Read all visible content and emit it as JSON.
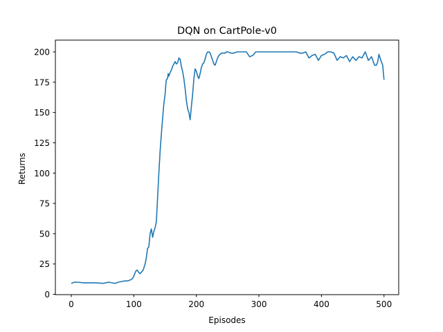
{
  "chart_data": {
    "type": "line",
    "title": "DQN on CartPole-v0",
    "xlabel": "Episodes",
    "ylabel": "Returns",
    "xlim": [
      -25,
      525
    ],
    "ylim": [
      -2,
      208
    ],
    "xticks": [
      0,
      100,
      200,
      300,
      400,
      500
    ],
    "yticks": [
      0,
      25,
      50,
      75,
      100,
      125,
      150,
      175,
      200
    ],
    "grid": false,
    "legend": null,
    "line_color": "#1f77b4",
    "series": [
      {
        "name": "Returns",
        "x": [
          0,
          5,
          10,
          20,
          30,
          40,
          50,
          55,
          60,
          65,
          70,
          75,
          80,
          85,
          90,
          95,
          98,
          100,
          103,
          105,
          108,
          110,
          115,
          118,
          120,
          122,
          124,
          126,
          128,
          130,
          132,
          134,
          136,
          138,
          140,
          142,
          143,
          144,
          146,
          148,
          150,
          151,
          152,
          154,
          155,
          156,
          158,
          160,
          162,
          164,
          166,
          168,
          170,
          172,
          174,
          176,
          178,
          180,
          182,
          184,
          186,
          188,
          190,
          192,
          194,
          196,
          198,
          200,
          202,
          204,
          206,
          208,
          210,
          212,
          214,
          216,
          218,
          220,
          222,
          224,
          226,
          228,
          230,
          232,
          234,
          236,
          238,
          240,
          242,
          244,
          246,
          248,
          250,
          255,
          260,
          265,
          270,
          275,
          280,
          285,
          290,
          295,
          300,
          305,
          310,
          315,
          320,
          325,
          330,
          335,
          340,
          345,
          350,
          355,
          360,
          365,
          370,
          375,
          380,
          385,
          390,
          392,
          395,
          400,
          405,
          410,
          415,
          420,
          425,
          430,
          435,
          440,
          445,
          450,
          455,
          460,
          465,
          470,
          475,
          480,
          485,
          488,
          490,
          492,
          495,
          498,
          500
        ],
        "values": [
          9,
          10,
          10,
          9.5,
          9.5,
          9.5,
          9,
          9.5,
          10,
          9.5,
          9,
          10,
          10.5,
          11,
          11,
          12,
          13,
          15,
          19,
          20,
          18,
          17,
          20,
          25,
          30,
          38,
          39,
          50,
          54,
          47,
          52,
          55,
          60,
          80,
          100,
          118,
          125,
          132,
          145,
          157,
          165,
          172,
          177,
          178,
          182,
          180,
          183,
          185,
          188,
          190,
          192,
          190,
          191,
          195,
          194,
          188,
          184,
          178,
          170,
          160,
          153,
          150,
          144,
          155,
          165,
          178,
          186,
          184,
          180,
          178,
          182,
          187,
          190,
          191,
          194,
          198,
          200,
          200,
          199,
          196,
          193,
          190,
          189,
          192,
          195,
          197,
          198,
          199,
          199,
          199,
          199,
          200,
          200,
          199,
          199,
          200,
          200,
          200,
          200,
          196,
          197,
          200,
          200,
          200,
          200,
          200,
          200,
          200,
          200,
          200,
          200,
          200,
          200,
          200,
          200,
          199,
          199,
          200,
          195,
          197,
          198,
          196,
          193,
          197,
          198,
          200,
          200,
          199,
          193,
          196,
          195,
          197,
          192,
          196,
          193,
          196,
          195,
          200,
          193,
          196,
          189,
          189,
          192,
          198,
          193,
          189,
          177
        ]
      }
    ]
  }
}
